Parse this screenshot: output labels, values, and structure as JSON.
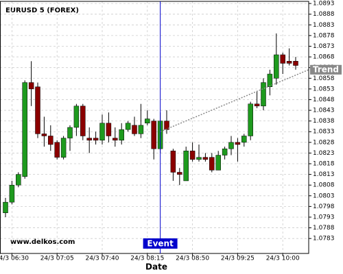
{
  "chart_data": {
    "type": "candlestick",
    "title": "EURUSD 5 (FOREX)",
    "watermark": "www.delkos.com",
    "x_label": "Date",
    "categories": [
      null,
      "24/3 06:30",
      null,
      null,
      null,
      null,
      null,
      null,
      "24/3 07:05",
      null,
      null,
      null,
      null,
      null,
      null,
      "24/3 07:40",
      null,
      null,
      null,
      null,
      null,
      null,
      "24/3 08:15",
      null,
      null,
      null,
      null,
      null,
      null,
      "24/3 08:50",
      null,
      null,
      null,
      null,
      null,
      null,
      "24/3 09:25",
      null,
      null,
      null,
      null,
      null,
      null,
      "24/3 10:00",
      null,
      null
    ],
    "open": [
      1.0795,
      1.08,
      1.0808,
      1.0812,
      1.0856,
      1.0854,
      1.0832,
      1.0831,
      1.0828,
      1.0821,
      1.083,
      1.0835,
      1.0845,
      1.083,
      1.083,
      1.0829,
      1.0837,
      1.083,
      1.0829,
      1.0834,
      1.0836,
      1.0832,
      1.0837,
      1.0838,
      1.0825,
      1.0838,
      1.0824,
      1.0814,
      1.081,
      1.0824,
      1.082,
      1.0821,
      1.0821,
      1.0815,
      1.0822,
      1.0825,
      1.0828,
      1.0828,
      1.0831,
      1.0846,
      1.0845,
      1.0854,
      1.0858,
      1.0869,
      1.0866,
      1.0866
    ],
    "high": [
      1.0802,
      1.081,
      1.0814,
      1.0857,
      1.0866,
      1.0856,
      1.084,
      1.0836,
      1.0829,
      1.0831,
      1.0836,
      1.0846,
      1.0846,
      1.0835,
      1.0833,
      1.0841,
      1.0842,
      1.0835,
      1.0837,
      1.0838,
      1.084,
      1.0846,
      1.0843,
      1.0839,
      1.0842,
      1.0843,
      1.0825,
      1.0816,
      1.0826,
      1.0828,
      1.0827,
      1.0823,
      1.0823,
      1.0824,
      1.0826,
      1.0831,
      1.083,
      1.0832,
      1.0847,
      1.0852,
      1.0858,
      1.0862,
      1.0879,
      1.087,
      1.0872,
      1.0868
    ],
    "low": [
      1.0793,
      1.0799,
      1.0807,
      1.0811,
      1.0845,
      1.083,
      1.0826,
      1.0824,
      1.082,
      1.082,
      1.0824,
      1.0831,
      1.0829,
      1.0823,
      1.0827,
      1.0827,
      1.0828,
      1.0826,
      1.0827,
      1.0833,
      1.0831,
      1.083,
      1.0836,
      1.082,
      1.0823,
      1.0832,
      1.081,
      1.0808,
      1.081,
      1.0819,
      1.0819,
      1.0819,
      1.0814,
      1.0815,
      1.082,
      1.0822,
      1.0819,
      1.0826,
      1.0829,
      1.0844,
      1.0843,
      1.085,
      1.0855,
      1.086,
      1.0864,
      1.0862
    ],
    "close": [
      1.08,
      1.0808,
      1.0813,
      1.0856,
      1.0853,
      1.0832,
      1.0831,
      1.0827,
      1.0821,
      1.083,
      1.0835,
      1.0845,
      1.0831,
      1.0829,
      1.0829,
      1.0837,
      1.0831,
      1.0829,
      1.0834,
      1.0837,
      1.0832,
      1.0836,
      1.0839,
      1.0825,
      1.0838,
      1.0834,
      1.0814,
      1.0813,
      1.0824,
      1.082,
      1.0821,
      1.082,
      1.0815,
      1.0822,
      1.0825,
      1.0828,
      1.0827,
      1.0831,
      1.0846,
      1.0845,
      1.0856,
      1.086,
      1.0869,
      1.0865,
      1.0865,
      1.0864
    ],
    "up_color": "#1e9a1e",
    "down_color": "#8b0000",
    "ylim": [
      1.0776,
      1.0894
    ],
    "yticks": [
      1.0783,
      1.0788,
      1.0793,
      1.0798,
      1.0803,
      1.0808,
      1.0813,
      1.0818,
      1.0823,
      1.0828,
      1.0833,
      1.0838,
      1.0843,
      1.0848,
      1.0853,
      1.0858,
      1.0863,
      1.0868,
      1.0873,
      1.0878,
      1.0883,
      1.0888,
      1.0893
    ],
    "grid": true,
    "event": {
      "label": "Event",
      "category": 24,
      "color": "#0000cc"
    },
    "trend": {
      "label": "Trend",
      "start": 1.0833,
      "end": 1.0862,
      "color": "#888888"
    }
  }
}
